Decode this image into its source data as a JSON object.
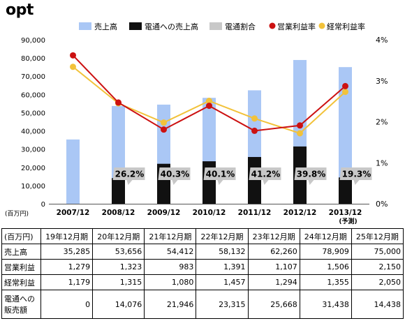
{
  "logo": "opt",
  "chart_data": {
    "type": "bar",
    "title": "",
    "categories": [
      "2007/12",
      "2008/12",
      "2009/12",
      "2010/12",
      "2011/12",
      "2012/12",
      "2013/12"
    ],
    "category_notes": [
      "",
      "",
      "",
      "",
      "",
      "",
      "(予測)"
    ],
    "yleft_unit": "(百万円)",
    "yleft_lim": [
      0,
      90000
    ],
    "yleft_ticks": [
      "0",
      "10,000",
      "20,000",
      "30,000",
      "40,000",
      "50,000",
      "60,000",
      "70,000",
      "80,000",
      "90,000"
    ],
    "yright_lim": [
      0,
      4
    ],
    "yright_ticks": [
      "0%",
      "1%",
      "2%",
      "3%",
      "4%"
    ],
    "legend_position": "top",
    "legend": [
      {
        "label": "売上高",
        "kind": "bar",
        "color": "#aac7f5"
      },
      {
        "label": "電通への売上高",
        "kind": "bar",
        "color": "#111111"
      },
      {
        "label": "電通割合",
        "kind": "bar",
        "color": "#c8c8c8"
      },
      {
        "label": "営業利益率",
        "kind": "line",
        "color": "#cc1111"
      },
      {
        "label": "経常利益率",
        "kind": "line",
        "color": "#f2c23a"
      }
    ],
    "series": [
      {
        "name": "売上高",
        "type": "bar",
        "color": "#aac7f5",
        "values": [
          35285,
          53656,
          54412,
          58132,
          62260,
          78909,
          75000
        ]
      },
      {
        "name": "電通への売上高",
        "type": "bar",
        "color": "#111111",
        "values": [
          0,
          14076,
          21946,
          23315,
          25668,
          31438,
          14438
        ]
      },
      {
        "name": "営業利益率",
        "type": "line",
        "axis": "right",
        "color": "#cc1111",
        "values": [
          3.62,
          2.47,
          1.81,
          2.39,
          1.78,
          1.91,
          2.87
        ]
      },
      {
        "name": "経常利益率",
        "type": "line",
        "axis": "right",
        "color": "#f2c23a",
        "values": [
          3.34,
          2.45,
          1.98,
          2.51,
          2.08,
          1.72,
          2.73
        ]
      }
    ],
    "ratio_labels": [
      "",
      "26.2%",
      "40.3%",
      "40.1%",
      "41.2%",
      "39.8%",
      "19.3%"
    ],
    "grid": false
  },
  "table": {
    "header": [
      "(百万円)",
      "19年12月期",
      "20年12月期",
      "21年12月期",
      "22年12月期",
      "23年12月期",
      "24年12月期",
      "25年12月期"
    ],
    "rows": [
      {
        "label": "売上高",
        "cells": [
          "35,285",
          "53,656",
          "54,412",
          "58,132",
          "62,260",
          "78,909",
          "75,000"
        ]
      },
      {
        "label": "営業利益",
        "cells": [
          "1,279",
          "1,323",
          "983",
          "1,391",
          "1,107",
          "1,506",
          "2,150"
        ]
      },
      {
        "label": "経常利益",
        "cells": [
          "1,179",
          "1,315",
          "1,080",
          "1,457",
          "1,294",
          "1,355",
          "2,050"
        ]
      },
      {
        "label_lines": [
          "電通への",
          "販売額"
        ],
        "cells": [
          "0",
          "14,076",
          "21,946",
          "23,315",
          "25,668",
          "31,438",
          "14,438"
        ]
      }
    ]
  }
}
